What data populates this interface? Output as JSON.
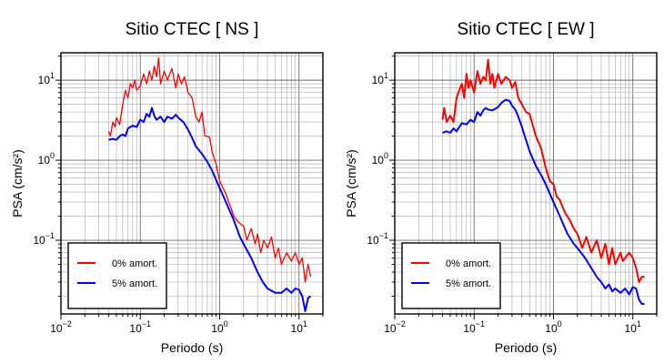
{
  "chart_data": [
    {
      "type": "line",
      "title": "Sitio CTEC [ NS ]",
      "xlabel": "Periodo (s)",
      "ylabel": "PSA (cm/s²)",
      "xscale": "log",
      "yscale": "log",
      "xlim": [
        0.01,
        20
      ],
      "ylim": [
        0.012,
        22
      ],
      "grid": true,
      "legend_position": "bottom-left",
      "x_tick_labels": [
        {
          "base": "10",
          "exp": "−2"
        },
        {
          "base": "10",
          "exp": "−1"
        },
        {
          "base": "10",
          "exp": "0"
        },
        {
          "base": "10",
          "exp": "1"
        }
      ],
      "y_tick_labels": [
        {
          "base": "10",
          "exp": "−1"
        },
        {
          "base": "10",
          "exp": "0"
        },
        {
          "base": "10",
          "exp": "1"
        }
      ],
      "series": [
        {
          "name": "0% amort.",
          "color": "#ff0000",
          "x": [
            0.04,
            0.042,
            0.045,
            0.048,
            0.05,
            0.055,
            0.06,
            0.065,
            0.07,
            0.075,
            0.08,
            0.085,
            0.09,
            0.1,
            0.11,
            0.12,
            0.13,
            0.14,
            0.15,
            0.16,
            0.17,
            0.18,
            0.2,
            0.22,
            0.25,
            0.28,
            0.3,
            0.33,
            0.36,
            0.4,
            0.45,
            0.5,
            0.55,
            0.6,
            0.65,
            0.7,
            0.75,
            0.8,
            0.9,
            1.0,
            1.1,
            1.2,
            1.3,
            1.4,
            1.5,
            1.7,
            2.0,
            2.2,
            2.5,
            2.8,
            3.0,
            3.3,
            3.6,
            4.0,
            4.5,
            5.0,
            5.5,
            6.0,
            7.0,
            8.0,
            9.0,
            10.0,
            11.0,
            12.0,
            13.0,
            14.0
          ],
          "y": [
            2.3,
            2.0,
            3.0,
            2.6,
            3.4,
            2.8,
            5.0,
            7.5,
            6.0,
            9.0,
            8.0,
            10.0,
            7.5,
            8.5,
            12.0,
            9.0,
            13.0,
            10.0,
            15.0,
            11.0,
            19.0,
            9.0,
            13.0,
            10.0,
            14.0,
            8.0,
            12.0,
            9.0,
            11.0,
            7.0,
            6.0,
            3.5,
            3.0,
            4.0,
            2.0,
            2.0,
            1.9,
            1.3,
            0.9,
            0.55,
            0.45,
            0.38,
            0.3,
            0.25,
            0.2,
            0.17,
            0.15,
            0.1,
            0.14,
            0.09,
            0.12,
            0.07,
            0.1,
            0.08,
            0.11,
            0.06,
            0.08,
            0.05,
            0.07,
            0.055,
            0.07,
            0.05,
            0.06,
            0.03,
            0.05,
            0.035
          ]
        },
        {
          "name": "5% amort.",
          "color": "#0000ff",
          "x": [
            0.04,
            0.045,
            0.05,
            0.055,
            0.06,
            0.065,
            0.07,
            0.08,
            0.09,
            0.1,
            0.11,
            0.12,
            0.13,
            0.14,
            0.15,
            0.16,
            0.18,
            0.2,
            0.22,
            0.25,
            0.28,
            0.3,
            0.35,
            0.4,
            0.45,
            0.5,
            0.6,
            0.7,
            0.8,
            1.0,
            1.2,
            1.5,
            1.8,
            2.0,
            2.5,
            3.0,
            3.5,
            4.0,
            5.0,
            6.0,
            7.0,
            8.0,
            9.0,
            10.0,
            11.0,
            12.0,
            13.0,
            14.0
          ],
          "y": [
            1.8,
            1.85,
            1.8,
            2.0,
            2.1,
            2.0,
            2.5,
            2.7,
            2.6,
            3.2,
            3.0,
            3.8,
            3.5,
            4.5,
            3.6,
            3.2,
            3.5,
            3.0,
            3.5,
            3.3,
            3.7,
            3.4,
            3.0,
            2.4,
            1.9,
            1.5,
            1.2,
            0.95,
            0.75,
            0.45,
            0.3,
            0.18,
            0.11,
            0.09,
            0.06,
            0.04,
            0.03,
            0.025,
            0.022,
            0.022,
            0.025,
            0.022,
            0.025,
            0.024,
            0.02,
            0.013,
            0.019,
            0.02
          ]
        }
      ]
    },
    {
      "type": "line",
      "title": "Sitio CTEC [ EW ]",
      "xlabel": "Periodo (s)",
      "ylabel": "PSA (cm/s²)",
      "xscale": "log",
      "yscale": "log",
      "xlim": [
        0.01,
        20
      ],
      "ylim": [
        0.012,
        22
      ],
      "grid": true,
      "legend_position": "bottom-left",
      "x_tick_labels": [
        {
          "base": "10",
          "exp": "−2"
        },
        {
          "base": "10",
          "exp": "−1"
        },
        {
          "base": "10",
          "exp": "0"
        },
        {
          "base": "10",
          "exp": "1"
        }
      ],
      "y_tick_labels": [
        {
          "base": "10",
          "exp": "−1"
        },
        {
          "base": "10",
          "exp": "0"
        },
        {
          "base": "10",
          "exp": "1"
        }
      ],
      "series": [
        {
          "name": "0% amort.",
          "color": "#ff0000",
          "x": [
            0.04,
            0.042,
            0.045,
            0.05,
            0.055,
            0.06,
            0.065,
            0.07,
            0.075,
            0.08,
            0.085,
            0.09,
            0.1,
            0.11,
            0.12,
            0.13,
            0.14,
            0.15,
            0.16,
            0.17,
            0.18,
            0.2,
            0.22,
            0.25,
            0.28,
            0.3,
            0.33,
            0.36,
            0.4,
            0.45,
            0.5,
            0.6,
            0.7,
            0.8,
            0.9,
            1.0,
            1.1,
            1.2,
            1.4,
            1.6,
            1.8,
            2.0,
            2.3,
            2.6,
            3.0,
            3.5,
            4.0,
            4.5,
            5.0,
            5.5,
            6.0,
            7.0,
            7.5,
            8.0,
            9.0,
            10.0,
            11.0,
            12.0,
            13.0,
            14.0
          ],
          "y": [
            3.2,
            4.5,
            3.0,
            3.6,
            3.0,
            6.0,
            7.5,
            9.0,
            6.0,
            12.0,
            8.0,
            10.0,
            7.0,
            13.0,
            9.0,
            11.0,
            10.0,
            18.0,
            9.0,
            12.0,
            8.0,
            12.0,
            9.0,
            11.0,
            10.0,
            8.0,
            9.5,
            6.0,
            5.0,
            4.0,
            3.8,
            2.0,
            1.4,
            0.8,
            0.55,
            0.5,
            0.35,
            0.32,
            0.22,
            0.18,
            0.14,
            0.12,
            0.08,
            0.11,
            0.07,
            0.1,
            0.06,
            0.09,
            0.05,
            0.08,
            0.05,
            0.07,
            0.055,
            0.06,
            0.07,
            0.06,
            0.045,
            0.03,
            0.035,
            0.035
          ]
        },
        {
          "name": "5% amort.",
          "color": "#0000ff",
          "x": [
            0.04,
            0.045,
            0.05,
            0.055,
            0.06,
            0.065,
            0.07,
            0.08,
            0.09,
            0.1,
            0.11,
            0.12,
            0.13,
            0.14,
            0.15,
            0.17,
            0.2,
            0.22,
            0.25,
            0.28,
            0.3,
            0.33,
            0.36,
            0.4,
            0.45,
            0.5,
            0.6,
            0.7,
            0.8,
            0.9,
            1.0,
            1.2,
            1.5,
            1.8,
            2.0,
            2.5,
            3.0,
            3.5,
            4.0,
            4.5,
            5.0,
            5.5,
            6.0,
            7.0,
            8.0,
            9.0,
            10.0,
            11.0,
            12.0,
            13.0,
            14.0
          ],
          "y": [
            2.2,
            2.3,
            2.2,
            2.5,
            2.3,
            2.6,
            2.9,
            2.8,
            3.2,
            3.0,
            4.0,
            3.6,
            4.2,
            4.5,
            4.3,
            4.2,
            4.6,
            5.2,
            5.7,
            5.5,
            4.8,
            4.3,
            3.5,
            2.6,
            1.8,
            1.3,
            0.85,
            0.65,
            0.5,
            0.38,
            0.3,
            0.2,
            0.12,
            0.09,
            0.08,
            0.06,
            0.045,
            0.035,
            0.03,
            0.025,
            0.028,
            0.023,
            0.025,
            0.022,
            0.025,
            0.021,
            0.026,
            0.025,
            0.018,
            0.016,
            0.016
          ]
        }
      ]
    }
  ]
}
